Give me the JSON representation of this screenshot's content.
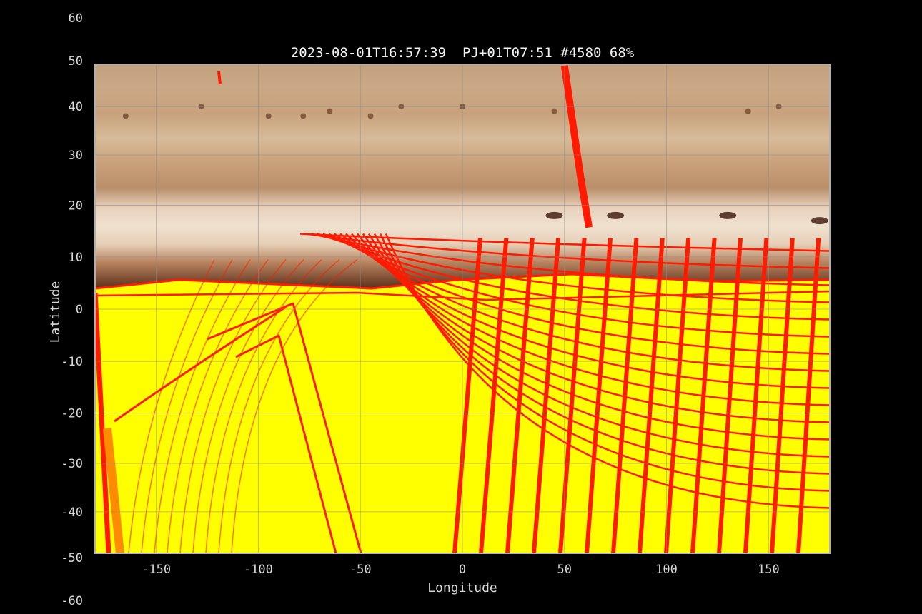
{
  "figure": {
    "title": "2023-08-01T16:57:39  PJ+01T07:51 #4580 68%"
  },
  "chart_data": {
    "type": "heatmap",
    "title": "2023-08-01T16:57:39  PJ+01T07:51 #4580 68%",
    "xlabel": "Longitude",
    "ylabel": "Latitude",
    "xlim": [
      -180,
      180
    ],
    "ylim": [
      -72,
      72
    ],
    "y_scale": "stretched toward the pole (non-linear latitude spacing)",
    "grid": true,
    "x_ticks": [
      -150,
      -100,
      -50,
      0,
      50,
      100,
      150
    ],
    "y_ticks": [
      60,
      50,
      40,
      30,
      20,
      10,
      0,
      -10,
      -20,
      -30,
      -40,
      -50,
      -60
    ],
    "background": "Jupiter cylindrical map, northern half (latitude > ~15)",
    "overlay": "yellow footprint coverage with red observation grid cells",
    "overlay_edge_latitude": 15,
    "colors": {
      "overlay_fill": "#ffff00",
      "overlay_edge": "#ff0000",
      "background": "#000000",
      "axes_frame": "#b0b0b0"
    }
  }
}
